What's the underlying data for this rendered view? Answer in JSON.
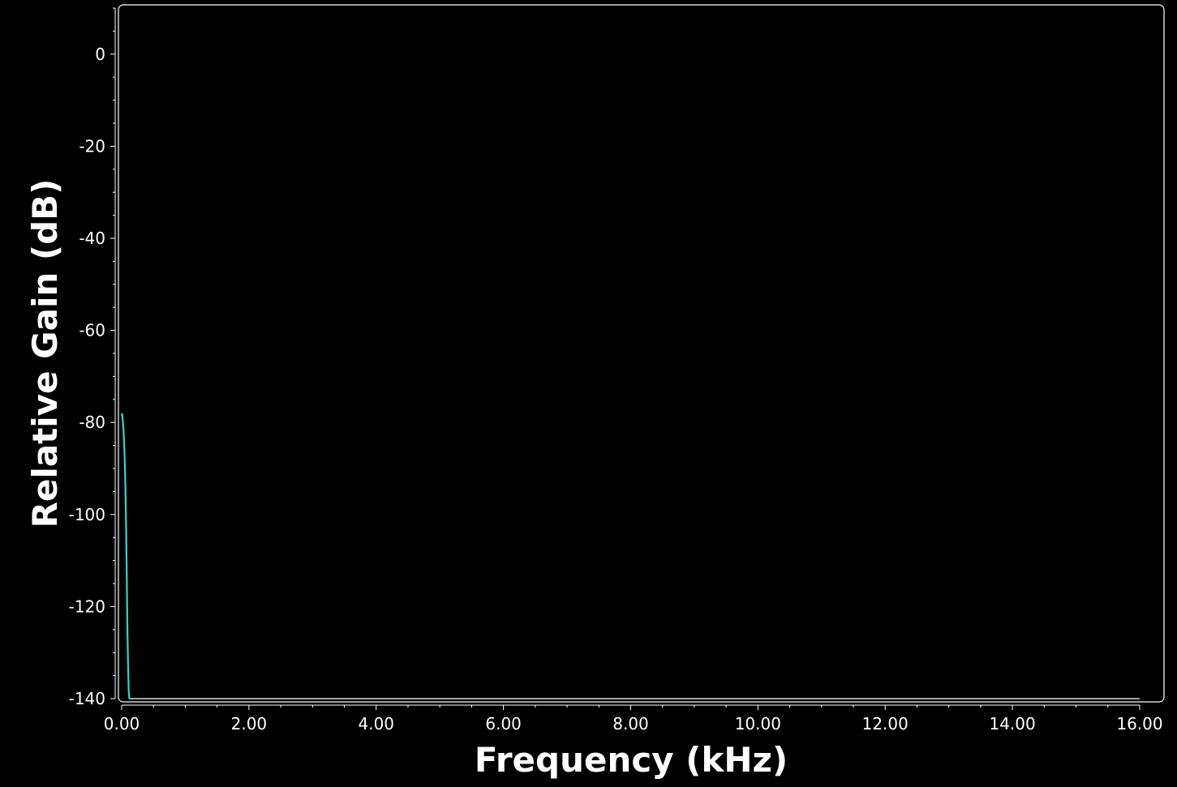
{
  "chart_data": {
    "type": "line",
    "title": "",
    "xlabel": "Frequency (kHz)",
    "ylabel": "Relative Gain (dB)",
    "xlim": [
      0,
      16
    ],
    "ylim": [
      -140,
      10
    ],
    "x_ticks": [
      "0.00",
      "2.00",
      "4.00",
      "6.00",
      "8.00",
      "10.00",
      "12.00",
      "14.00",
      "16.00"
    ],
    "y_ticks": [
      "0",
      "-20",
      "-40",
      "-60",
      "-80",
      "-100",
      "-120",
      "-140"
    ],
    "grid": false,
    "legend": "none",
    "series": [
      {
        "color": "#2fd3d3",
        "x": [
          0.0,
          0.01,
          0.02,
          0.03,
          0.04,
          0.05,
          0.06,
          0.07,
          0.08,
          0.09,
          0.1,
          0.11,
          0.12,
          1.0,
          4.0,
          8.0,
          12.0,
          16.0
        ],
        "y": [
          -78,
          -78.5,
          -80,
          -82,
          -85,
          -89,
          -95,
          -103,
          -113,
          -125,
          -132,
          -138,
          -140,
          -140,
          -140,
          -140,
          -140,
          -140
        ]
      }
    ]
  },
  "colors": {
    "background": "#000000",
    "axis": "#ffffff",
    "trace": "#2fd3d3",
    "floor": "#d8d8d8"
  }
}
